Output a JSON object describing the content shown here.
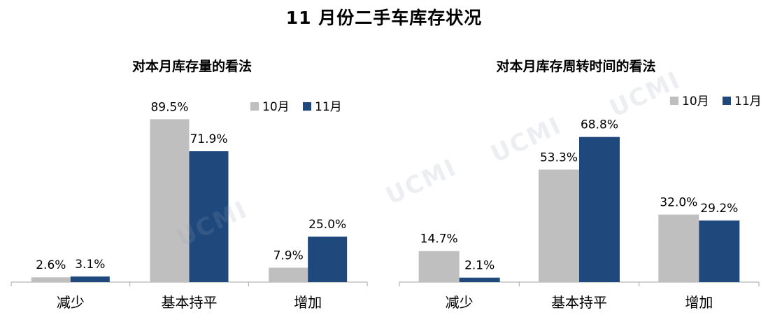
{
  "title": "11 月份二手车库存状况",
  "watermark": "UCMI",
  "colors": {
    "oct": "#bfbfbf",
    "nov": "#1f497d",
    "axis": "#a6a6a6"
  },
  "chart_data": [
    {
      "type": "bar",
      "title": "对本月库存量的看法",
      "categories": [
        "减少",
        "基本持平",
        "增加"
      ],
      "series": [
        {
          "name": "10月",
          "values": [
            2.6,
            89.5,
            7.9
          ],
          "labels": [
            "2.6%",
            "89.5%",
            "7.9%"
          ]
        },
        {
          "name": "11月",
          "values": [
            3.1,
            71.9,
            25.0
          ],
          "labels": [
            "3.1%",
            "71.9%",
            "25.0%"
          ]
        }
      ],
      "ylim": [
        0,
        100
      ],
      "legend": "top-right",
      "grid": false
    },
    {
      "type": "bar",
      "title": "对本月库存周转时间的看法",
      "categories": [
        "减少",
        "基本持平",
        "增加"
      ],
      "series": [
        {
          "name": "10月",
          "values": [
            14.7,
            53.3,
            32.0
          ],
          "labels": [
            "14.7%",
            "53.3%",
            "32.0%"
          ]
        },
        {
          "name": "11月",
          "values": [
            2.1,
            68.8,
            29.2
          ],
          "labels": [
            "2.1%",
            "68.8%",
            "29.2%"
          ]
        }
      ],
      "ylim": [
        0,
        75
      ],
      "legend": "top-right",
      "grid": false
    }
  ]
}
